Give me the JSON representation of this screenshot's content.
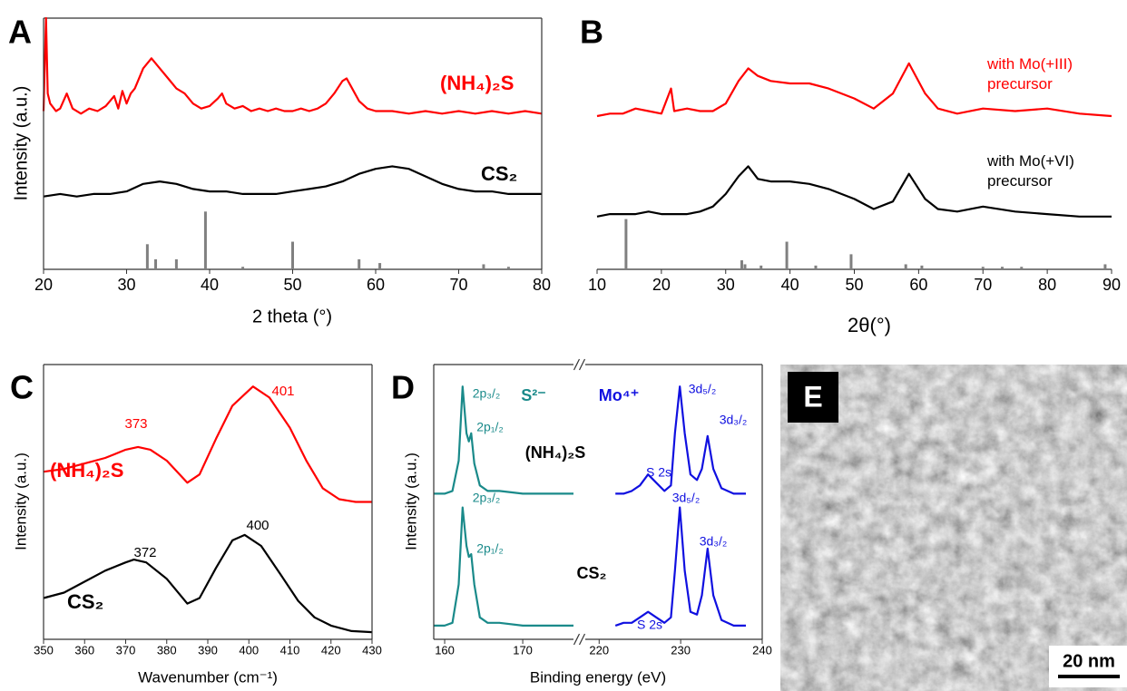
{
  "chart_data": [
    {
      "type": "line",
      "panel": "A",
      "xlabel": "2 theta (°)",
      "ylabel": "Intensity (a.u.)",
      "xlim": [
        20,
        80
      ],
      "xticks": [
        20,
        30,
        40,
        50,
        60,
        70,
        80
      ],
      "ylim": [
        0,
        100
      ],
      "frame": true,
      "series": [
        {
          "name": "(NH₄)₂S",
          "color": "#ff0000",
          "type": "line",
          "x": [
            20,
            20.3,
            20.5,
            20.8,
            21.5,
            22,
            22.8,
            23.5,
            24.5,
            25.5,
            26.5,
            27.5,
            28.5,
            29,
            29.5,
            30,
            30.5,
            31,
            32,
            33,
            34,
            35,
            36,
            37,
            38,
            39,
            40,
            41,
            41.5,
            42,
            43,
            44,
            45,
            46,
            47,
            48,
            49,
            50,
            51,
            52,
            53,
            54,
            55,
            56,
            56.5,
            57,
            58,
            59,
            60,
            62,
            64,
            66,
            68,
            70,
            72,
            74,
            76,
            78,
            80
          ],
          "values": [
            63,
            100,
            70,
            66,
            63,
            64,
            70,
            64,
            62,
            64,
            63,
            65,
            69,
            64,
            71,
            66,
            70,
            72,
            80,
            84,
            80,
            76,
            72,
            70,
            66,
            64,
            65,
            68,
            70,
            66,
            64,
            65,
            63,
            64,
            63,
            64,
            63,
            63,
            64,
            63,
            64,
            66,
            70,
            75,
            76,
            73,
            67,
            64,
            63,
            63,
            62,
            63,
            62,
            63,
            62,
            63,
            62,
            63,
            62
          ]
        },
        {
          "name": "CS₂",
          "color": "#000000",
          "type": "line",
          "x": [
            20,
            22,
            24,
            26,
            28,
            30,
            32,
            34,
            36,
            38,
            40,
            42,
            44,
            46,
            48,
            50,
            52,
            54,
            56,
            58,
            60,
            62,
            64,
            66,
            68,
            70,
            72,
            74,
            76,
            78,
            80
          ],
          "values": [
            29,
            30,
            29,
            30,
            30,
            31,
            34,
            35,
            34,
            32,
            31,
            31,
            30,
            30,
            30,
            31,
            32,
            33,
            35,
            38,
            40,
            41,
            40,
            37,
            34,
            32,
            31,
            31,
            30,
            30,
            30
          ]
        },
        {
          "color": "#808080",
          "type": "stem",
          "x": [
            32.5,
            33.5,
            36,
            39.5,
            44,
            50,
            58,
            60.5,
            73,
            76
          ],
          "values": [
            10,
            4,
            4,
            23,
            1,
            11,
            4,
            2.5,
            2,
            1
          ]
        }
      ]
    },
    {
      "type": "line",
      "panel": "B",
      "xlabel": "2θ(°)",
      "xlim": [
        10,
        90
      ],
      "xticks": [
        10,
        20,
        30,
        40,
        50,
        60,
        70,
        80,
        90
      ],
      "ylim": [
        0,
        100
      ],
      "frame": false,
      "series": [
        {
          "name": "with Mo(+III) precursor",
          "color": "#ff0000",
          "type": "line",
          "x": [
            10,
            12,
            14,
            16,
            18,
            20,
            21.5,
            22,
            24,
            26,
            28,
            30,
            32,
            33.5,
            35,
            37,
            40,
            43,
            46,
            50,
            53,
            56,
            58.5,
            61,
            63,
            66,
            70,
            75,
            80,
            85,
            90
          ],
          "values": [
            61,
            62,
            62,
            64,
            63,
            62,
            72,
            63,
            64,
            63,
            63,
            66,
            75,
            80,
            77,
            75,
            74,
            74,
            72,
            68,
            64,
            70,
            82,
            70,
            64,
            62,
            64,
            63,
            64,
            62,
            61
          ]
        },
        {
          "name": "with Mo(+VI) precursor",
          "color": "#000000",
          "type": "line",
          "x": [
            10,
            12,
            14,
            16,
            18,
            20,
            22,
            24,
            26,
            28,
            30,
            32,
            33.5,
            35,
            37,
            40,
            43,
            46,
            50,
            53,
            56,
            58.5,
            61,
            63,
            66,
            70,
            75,
            80,
            85,
            90
          ],
          "values": [
            21,
            22,
            22,
            22,
            23,
            22,
            22,
            22,
            23,
            25,
            30,
            37,
            41,
            36,
            35,
            35,
            34,
            32,
            28,
            24,
            27,
            38,
            28,
            24,
            23,
            25,
            23,
            22,
            21,
            21
          ]
        },
        {
          "color": "#808080",
          "type": "stem",
          "x": [
            14.5,
            32.5,
            33,
            35.5,
            39.5,
            44,
            49.5,
            58,
            60.5,
            70,
            73,
            76,
            89
          ],
          "values": [
            20,
            3.6,
            2,
            1.5,
            11,
            1.5,
            6,
            2,
            1.5,
            1,
            1,
            1,
            2
          ]
        }
      ]
    },
    {
      "type": "line",
      "panel": "C",
      "xlabel": "Wavenumber (cm⁻¹)",
      "ylabel": "Intensity (a.u.)",
      "xlim": [
        350,
        430
      ],
      "xticks": [
        350,
        360,
        370,
        380,
        390,
        400,
        410,
        420,
        430
      ],
      "ylim": [
        0,
        100
      ],
      "frame": true,
      "series": [
        {
          "name": "(NH₄)₂S",
          "color": "#ff0000",
          "type": "line",
          "x": [
            350,
            355,
            360,
            365,
            370,
            373,
            376,
            380,
            385,
            388,
            392,
            396,
            401,
            405,
            410,
            414,
            418,
            422,
            426,
            430
          ],
          "values": [
            61,
            62,
            64,
            66,
            69,
            70,
            69,
            65,
            57,
            60,
            73,
            85,
            92,
            88,
            77,
            65,
            55,
            51,
            50,
            50
          ]
        },
        {
          "name": "CS₂",
          "color": "#000000",
          "type": "line",
          "x": [
            350,
            355,
            360,
            365,
            370,
            372,
            375,
            380,
            385,
            388,
            392,
            396,
            399,
            403,
            408,
            412,
            416,
            420,
            425,
            430
          ],
          "values": [
            15,
            17,
            21,
            25,
            28,
            29,
            28,
            22,
            13,
            15,
            26,
            36,
            38,
            34,
            23,
            14,
            8,
            5,
            3,
            2.6
          ]
        }
      ],
      "annotations": [
        "373",
        "401",
        "372",
        "400"
      ]
    },
    {
      "type": "line",
      "panel": "D",
      "xlabel": "Binding energy (eV)",
      "ylabel": "Intensity (a.u.)",
      "ylim": [
        0,
        100
      ],
      "frame": true,
      "segments": [
        {
          "xlim": [
            158.6,
            176.5
          ],
          "xticks": [
            160,
            170
          ],
          "series": [
            {
              "color": "#1a8a8a",
              "type": "line",
              "x": [
                158.6,
                160,
                161,
                161.8,
                162.3,
                162.8,
                163.1,
                163.4,
                163.8,
                164.5,
                165.5,
                167,
                170,
                173,
                176.5
              ],
              "values": [
                53,
                53,
                54,
                65,
                92,
                75,
                72,
                75,
                64,
                56,
                54,
                54,
                53,
                53,
                53
              ]
            },
            {
              "color": "#1a8a8a",
              "type": "line",
              "x": [
                158.6,
                160,
                161,
                161.8,
                162.3,
                162.8,
                163.1,
                163.4,
                163.8,
                164.5,
                165.5,
                167,
                170,
                173,
                176.5
              ],
              "values": [
                5,
                5,
                6,
                20,
                48,
                34,
                30,
                31,
                20,
                8,
                6,
                6,
                5,
                5,
                5
              ]
            }
          ]
        },
        {
          "xlim": [
            218.3,
            240
          ],
          "xticks": [
            220,
            230,
            240
          ],
          "series": [
            {
              "color": "#1010e0",
              "type": "line",
              "x": [
                222,
                223,
                224,
                225,
                226,
                227,
                228,
                228.8,
                229.3,
                229.9,
                230.5,
                231.2,
                232,
                232.6,
                233.3,
                234,
                235,
                236.5,
                238
              ],
              "values": [
                53,
                53,
                54,
                56,
                60,
                57,
                54,
                56,
                75,
                92,
                75,
                60,
                58,
                62,
                74,
                62,
                55,
                53,
                53
              ]
            },
            {
              "color": "#1010e0",
              "type": "line",
              "x": [
                222,
                223,
                224,
                225,
                226,
                227,
                228,
                228.8,
                229.3,
                229.9,
                230.5,
                231.2,
                232,
                232.6,
                233.3,
                234,
                235,
                236.5,
                238
              ],
              "values": [
                5,
                6,
                6,
                8,
                10,
                8,
                6,
                8,
                25,
                48,
                25,
                10,
                9,
                16,
                33,
                16,
                7,
                5,
                5
              ]
            }
          ]
        }
      ],
      "annotations": [
        "2p₃/₂",
        "2p₁/₂",
        "S²⁻",
        "Mo⁴⁺",
        "3d₅/₂",
        "3d₃/₂",
        "S 2s",
        "(NH₄)₂S",
        "2p₃/₂",
        "2p₁/₂",
        "3d₅/₂",
        "3d₃/₂",
        "S 2s",
        "CS₂"
      ]
    }
  ],
  "image": {
    "label": "E",
    "scale_bar": "20 nm"
  }
}
